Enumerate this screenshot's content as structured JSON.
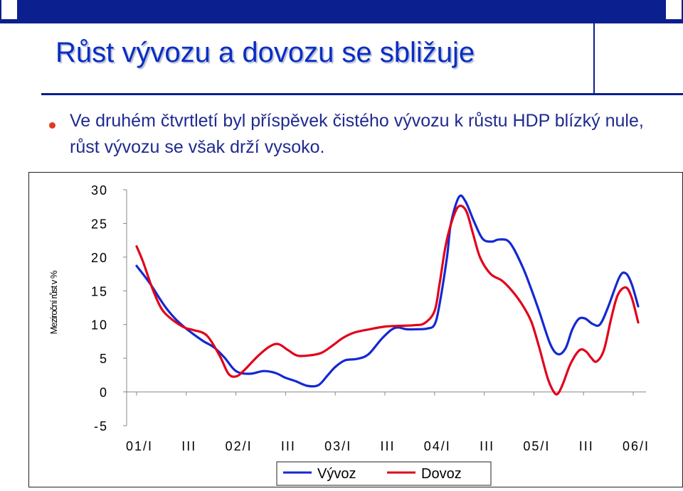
{
  "slide": {
    "title": "Růst vývozu a dovozu se sbližuje",
    "bullet": "Ve druhém čtvrtletí byl příspěvek čistého vývozu k růstu HDP blízký nule, růst vývozu se však drží vysoko."
  },
  "colors": {
    "topbar": "#0b1f8f",
    "title": "#0b2dc2",
    "bullet_text": "#1f2a90",
    "bullet_dot": "#e23a1e",
    "vyvoz": "#1428d2",
    "dovoz": "#e2001a"
  },
  "chart_data": {
    "type": "line",
    "ylabel": "Meziroční růst v %",
    "ylim": [
      -5,
      30
    ],
    "yticks": [
      "30",
      "25",
      "20",
      "15",
      "10",
      "5",
      "0",
      "-5"
    ],
    "xlabels": [
      "01/I",
      "III",
      "02/I",
      "III",
      "03/I",
      "III",
      "04/I",
      "III",
      "05/I",
      "III",
      "06/I"
    ],
    "grid": false,
    "legend": "bottom",
    "series": [
      {
        "name": "Vývoz",
        "color": "#1428d2",
        "x": [
          0.0,
          0.26,
          0.46,
          0.62,
          0.8,
          1.03,
          1.33,
          1.56,
          1.77,
          2.0,
          2.28,
          2.56,
          2.8,
          3.0,
          3.2,
          3.44,
          3.66,
          3.84,
          4.0,
          4.2,
          4.44,
          4.67,
          4.95,
          5.2,
          5.44,
          5.64,
          5.85,
          6.0,
          6.1,
          6.25,
          6.33,
          6.49,
          6.62,
          6.8,
          6.97,
          7.15,
          7.28,
          7.46,
          7.59,
          7.77,
          7.9,
          8.1,
          8.33,
          8.49,
          8.64,
          8.77,
          8.9,
          9.03,
          9.18,
          9.33,
          9.49,
          9.72,
          9.85,
          9.97,
          10.1
        ],
        "y": [
          18.7,
          16.2,
          13.9,
          12.2,
          10.7,
          9.2,
          7.6,
          6.6,
          5.1,
          3.1,
          2.7,
          3.1,
          2.8,
          2.1,
          1.6,
          0.9,
          1.0,
          2.4,
          3.7,
          4.7,
          4.9,
          5.6,
          8.0,
          9.5,
          9.3,
          9.3,
          9.4,
          10.0,
          13.0,
          20.0,
          25.0,
          28.9,
          28.3,
          25.2,
          22.7,
          22.3,
          22.6,
          22.5,
          21.3,
          18.6,
          16.2,
          12.1,
          7.1,
          5.6,
          6.5,
          9.2,
          10.8,
          10.9,
          10.1,
          10.0,
          12.5,
          17.0,
          17.6,
          16.0,
          12.7
        ]
      },
      {
        "name": "Dovoz",
        "color": "#e2001a",
        "x": [
          0.0,
          0.13,
          0.31,
          0.49,
          0.67,
          0.95,
          1.13,
          1.41,
          1.67,
          1.85,
          2.0,
          2.15,
          2.44,
          2.67,
          2.85,
          3.05,
          3.23,
          3.46,
          3.72,
          3.95,
          4.15,
          4.38,
          4.69,
          5.0,
          5.28,
          5.59,
          5.8,
          6.0,
          6.1,
          6.23,
          6.38,
          6.5,
          6.64,
          6.77,
          6.92,
          7.13,
          7.36,
          7.56,
          7.77,
          7.95,
          8.1,
          8.28,
          8.41,
          8.49,
          8.59,
          8.74,
          8.92,
          9.05,
          9.15,
          9.26,
          9.41,
          9.56,
          9.69,
          9.85,
          9.97,
          10.1
        ],
        "y": [
          21.6,
          19.3,
          15.5,
          12.5,
          11.0,
          9.6,
          9.2,
          8.4,
          5.4,
          2.7,
          2.3,
          3.1,
          5.3,
          6.7,
          7.1,
          6.2,
          5.4,
          5.4,
          5.8,
          6.9,
          8.0,
          8.8,
          9.3,
          9.7,
          9.8,
          9.9,
          10.2,
          12.0,
          16.0,
          22.0,
          26.0,
          27.6,
          26.8,
          23.6,
          19.9,
          17.5,
          16.5,
          15.0,
          12.9,
          10.4,
          6.8,
          2.0,
          -0.1,
          -0.2,
          1.3,
          4.2,
          6.2,
          6.0,
          5.1,
          4.5,
          6.2,
          11.0,
          14.4,
          15.5,
          14.0,
          10.3
        ]
      }
    ]
  }
}
